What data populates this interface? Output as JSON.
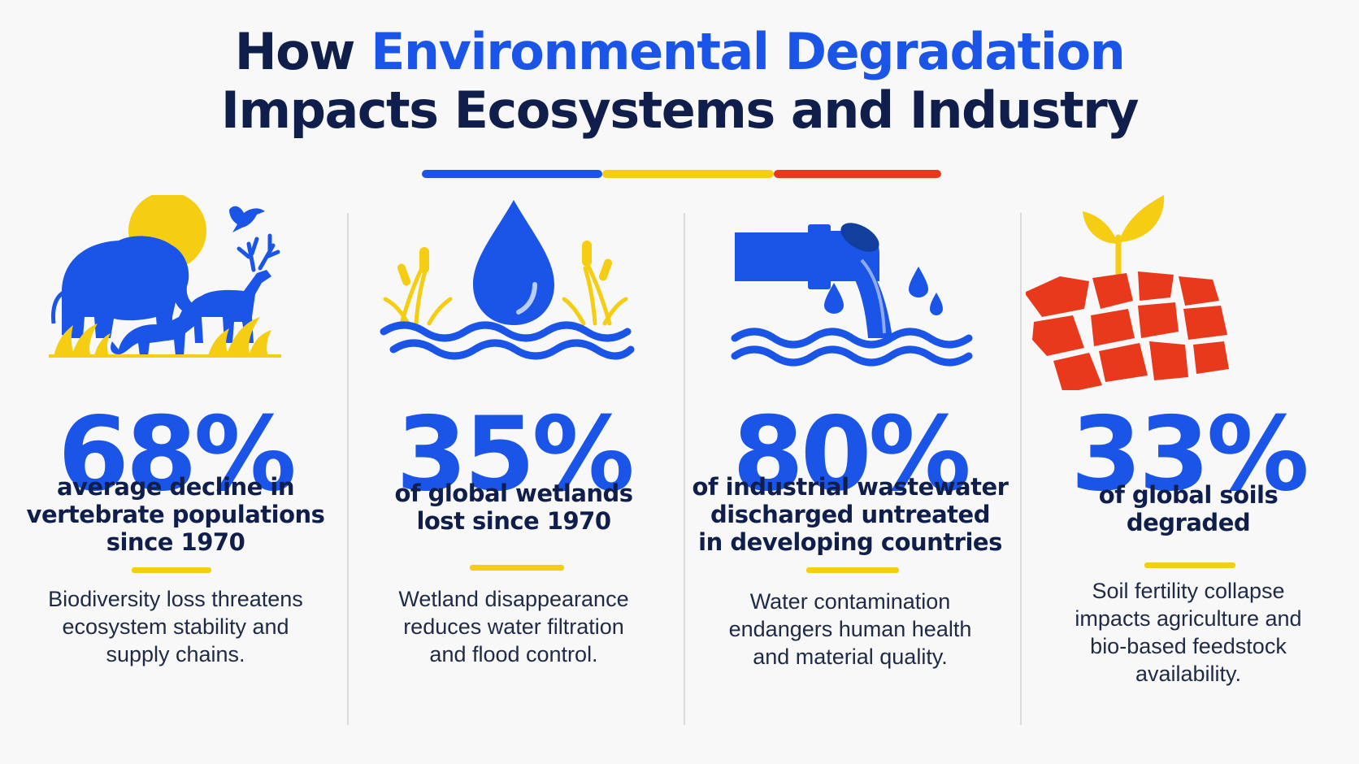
{
  "title": {
    "line1_prefix": "How ",
    "line1_accent": "Environmental Degradation",
    "line2": "Impacts Ecosystems and Industry"
  },
  "colors": {
    "navy": "#0f1e4a",
    "blue": "#1a55e8",
    "yellow": "#f5cd13",
    "red": "#e8391d"
  },
  "stats": [
    {
      "icon": "wildlife-icon",
      "value": "68%",
      "headline": "average decline in\nvertebrate populations\nsince 1970",
      "description": "Biodiversity loss threatens\necosystem stability and\nsupply chains."
    },
    {
      "icon": "water-drop-wetland-icon",
      "value": "35%",
      "headline": "of global wetlands\nlost since 1970",
      "description": "Wetland disappearance\nreduces water filtration\nand flood control."
    },
    {
      "icon": "wastewater-pipe-icon",
      "value": "80%",
      "headline": "of industrial wastewater\ndischarged untreated\nin developing countries",
      "description": "Water contamination\nendangers human health\nand material quality."
    },
    {
      "icon": "degraded-soil-sprout-icon",
      "value": "33%",
      "headline": "of global soils\ndegraded",
      "description": "Soil fertility collapse\nimpacts agriculture and\nbio-based feedstock\navailability."
    }
  ]
}
